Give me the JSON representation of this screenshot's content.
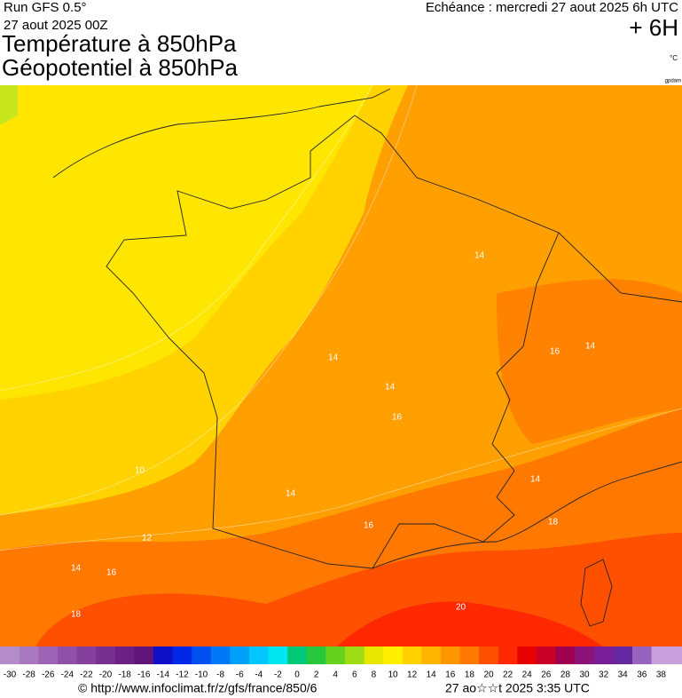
{
  "header": {
    "run": "Run GFS 0.5°",
    "date": "27 aout 2025 00Z",
    "echeance": "Echéance : mercredi 27 aout 2025 6h UTC",
    "offset": "+ 6H",
    "title1": "Température à 850hPa",
    "title2": "Géopotentiel à 850hPa",
    "unit": "°C",
    "unit2": "gpdam"
  },
  "contour_labels": [
    10,
    12,
    14,
    16,
    18,
    20,
    14,
    14,
    16,
    14,
    16,
    14,
    18,
    14,
    16,
    14
  ],
  "colorbar": {
    "labels": [
      -30,
      -28,
      -26,
      -24,
      -22,
      -20,
      -18,
      -16,
      -14,
      -12,
      -10,
      -8,
      -6,
      -4,
      -2,
      0,
      2,
      4,
      6,
      8,
      10,
      12,
      14,
      16,
      18,
      20,
      22,
      24,
      26,
      28,
      30,
      32,
      34,
      36,
      38
    ],
    "colors": [
      "#b48cc8",
      "#a878c0",
      "#9c64b4",
      "#9050a8",
      "#84409c",
      "#783090",
      "#6c2084",
      "#601478",
      "#1010c8",
      "#0028e6",
      "#0050f0",
      "#0078f5",
      "#00a0fa",
      "#00c8ff",
      "#00e6f0",
      "#00c878",
      "#28c83c",
      "#64d21e",
      "#a0dc14",
      "#e6e600",
      "#fff000",
      "#ffd200",
      "#ffb400",
      "#ff9600",
      "#ff7800",
      "#ff5000",
      "#ff2800",
      "#e60000",
      "#c80028",
      "#a00050",
      "#8c1478",
      "#781e96",
      "#6428a0",
      "#9664be",
      "#c8a0dc"
    ]
  },
  "footer": {
    "url": "© http://www.infoclimat.fr/z/gfs/france/850/6",
    "time": "27 ao☆☆t 2025  3:35 UTC"
  }
}
